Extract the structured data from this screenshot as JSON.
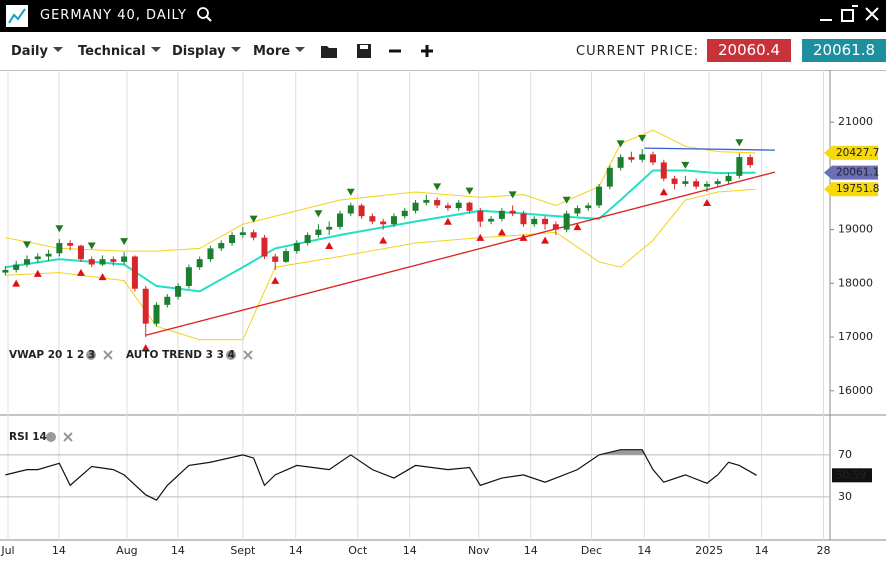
{
  "header": {
    "title": "GERMANY 40, DAILY"
  },
  "toolbar": {
    "menus": [
      "Daily",
      "Technical",
      "Display",
      "More"
    ],
    "price_label": "CURRENT PRICE:",
    "sell": "20060.4",
    "buy": "20061.8"
  },
  "chart_data": [
    {
      "type": "candlestick",
      "legend": [
        "VWAP 20 1 2 3",
        "AUTO TREND 3 3 4"
      ],
      "up_color": "#1b7f2f",
      "down_color": "#d8262b",
      "candles": [
        [
          18200,
          18320,
          18150,
          18250
        ],
        [
          18250,
          18420,
          18200,
          18350
        ],
        [
          18350,
          18520,
          18300,
          18450
        ],
        [
          18450,
          18560,
          18380,
          18500
        ],
        [
          18500,
          18620,
          18420,
          18550
        ],
        [
          18560,
          18820,
          18500,
          18750
        ],
        [
          18750,
          18800,
          18620,
          18700
        ],
        [
          18700,
          18720,
          18400,
          18450
        ],
        [
          18450,
          18500,
          18300,
          18350
        ],
        [
          18350,
          18520,
          18320,
          18450
        ],
        [
          18450,
          18500,
          18330,
          18400
        ],
        [
          18400,
          18580,
          18350,
          18500
        ],
        [
          18500,
          18520,
          17850,
          17900
        ],
        [
          17900,
          17950,
          17000,
          17250
        ],
        [
          17250,
          17650,
          17200,
          17600
        ],
        [
          17600,
          17800,
          17550,
          17750
        ],
        [
          17750,
          18000,
          17700,
          17950
        ],
        [
          17950,
          18350,
          17900,
          18300
        ],
        [
          18300,
          18500,
          18250,
          18450
        ],
        [
          18450,
          18700,
          18400,
          18650
        ],
        [
          18650,
          18800,
          18600,
          18750
        ],
        [
          18750,
          18950,
          18700,
          18900
        ],
        [
          18900,
          19050,
          18850,
          18950
        ],
        [
          18950,
          19000,
          18800,
          18850
        ],
        [
          18850,
          18900,
          18450,
          18500
        ],
        [
          18500,
          18550,
          18250,
          18400
        ],
        [
          18400,
          18650,
          18380,
          18600
        ],
        [
          18600,
          18800,
          18550,
          18750
        ],
        [
          18750,
          18950,
          18700,
          18900
        ],
        [
          18900,
          19100,
          18850,
          19000
        ],
        [
          19000,
          19150,
          18900,
          19050
        ],
        [
          19050,
          19350,
          19000,
          19300
        ],
        [
          19300,
          19500,
          19250,
          19450
        ],
        [
          19450,
          19480,
          19200,
          19250
        ],
        [
          19250,
          19300,
          19100,
          19150
        ],
        [
          19150,
          19200,
          19000,
          19100
        ],
        [
          19100,
          19300,
          19050,
          19250
        ],
        [
          19250,
          19400,
          19200,
          19350
        ],
        [
          19350,
          19550,
          19300,
          19500
        ],
        [
          19500,
          19650,
          19450,
          19550
        ],
        [
          19550,
          19600,
          19400,
          19450
        ],
        [
          19450,
          19500,
          19350,
          19400
        ],
        [
          19400,
          19550,
          19350,
          19500
        ],
        [
          19500,
          19520,
          19300,
          19350
        ],
        [
          19350,
          19400,
          19050,
          19150
        ],
        [
          19150,
          19250,
          19100,
          19200
        ],
        [
          19200,
          19400,
          19150,
          19350
        ],
        [
          19350,
          19450,
          19250,
          19300
        ],
        [
          19300,
          19350,
          19050,
          19100
        ],
        [
          19100,
          19250,
          19050,
          19200
        ],
        [
          19200,
          19250,
          19000,
          19100
        ],
        [
          19100,
          19150,
          18900,
          19000
        ],
        [
          19000,
          19350,
          18950,
          19300
        ],
        [
          19300,
          19450,
          19250,
          19400
        ],
        [
          19400,
          19500,
          19350,
          19450
        ],
        [
          19450,
          19850,
          19400,
          19800
        ],
        [
          19800,
          20200,
          19750,
          20150
        ],
        [
          20150,
          20400,
          20100,
          20350
        ],
        [
          20350,
          20450,
          20250,
          20300
        ],
        [
          20300,
          20500,
          20250,
          20400
        ],
        [
          20400,
          20450,
          20200,
          20250
        ],
        [
          20250,
          20300,
          19900,
          19950
        ],
        [
          19950,
          20000,
          19750,
          19850
        ],
        [
          19850,
          20000,
          19800,
          19900
        ],
        [
          19900,
          19950,
          19750,
          19800
        ],
        [
          19800,
          19900,
          19700,
          19850
        ],
        [
          19850,
          19950,
          19800,
          19900
        ],
        [
          19900,
          20050,
          19850,
          20000
        ],
        [
          20000,
          20420,
          19950,
          20350
        ],
        [
          20350,
          20400,
          20150,
          20200
        ]
      ],
      "ylim": [
        15550,
        21970
      ],
      "yticks": [
        16000,
        17000,
        18000,
        19000,
        20000,
        21000
      ],
      "bands": {
        "x": [
          0,
          5,
          11,
          14,
          18,
          22,
          25,
          31,
          38,
          44,
          48,
          51,
          55,
          57,
          60,
          63,
          66,
          69.5
        ],
        "series": [
          {
            "color": "#f2d21b",
            "tag_color": "#f5d90a",
            "values": [
              18850,
              18650,
              18600,
              18600,
              18650,
              19100,
              19250,
              19550,
              19700,
              19600,
              19650,
              19450,
              19800,
              20600,
              20850,
              20550,
              20450,
              20427.7
            ]
          },
          {
            "color": "#22e0c4",
            "tag_color": "#6a6fb8",
            "values": [
              18300,
              18450,
              18350,
              17950,
              17850,
              18300,
              18650,
              18900,
              19150,
              19350,
              19300,
              19250,
              19200,
              19550,
              20100,
              20100,
              20050,
              20061.1
            ]
          },
          {
            "color": "#f2d21b",
            "tag_color": "#f5d90a",
            "values": [
              18150,
              18200,
              18050,
              17200,
              16950,
              16950,
              18300,
              18500,
              18750,
              18850,
              18900,
              18950,
              18400,
              18300,
              18800,
              19550,
              19700,
              19751.8
            ]
          }
        ]
      },
      "trend_lines": [
        {
          "color": "#e02020",
          "x": [
            13,
            71.3
          ],
          "values": [
            17033,
            20070
          ]
        },
        {
          "color": "#3b5fd9",
          "x": [
            59.2,
            71.3
          ],
          "values": [
            20516,
            20479
          ]
        }
      ],
      "peak_markers": [
        2,
        5,
        8,
        11,
        23,
        29,
        32,
        40,
        43,
        47,
        52,
        57,
        59,
        63,
        68
      ],
      "peak_color": "#1f7a1f",
      "trough_markers": [
        1,
        3,
        7,
        9,
        13,
        25,
        30,
        35,
        41,
        44,
        46,
        48,
        50,
        53,
        61,
        65
      ],
      "trough_color": "#e01010"
    },
    {
      "type": "line",
      "title": "RSI 14",
      "color": "#111111",
      "fill": "#9a9a9a",
      "x": [
        0,
        2,
        3,
        5,
        6,
        8,
        10,
        11,
        13,
        14,
        15,
        17,
        19,
        22,
        23,
        24,
        25,
        27,
        30,
        32,
        34,
        36,
        38,
        41,
        43,
        44,
        46,
        48,
        50,
        51,
        53,
        55,
        57,
        59,
        60,
        61,
        63,
        65,
        66,
        67,
        68,
        69.6
      ],
      "values": [
        51,
        56,
        56,
        62,
        41,
        59,
        56,
        51,
        32,
        27,
        41,
        60,
        63,
        70,
        67,
        41,
        51,
        60,
        56,
        70,
        56,
        48,
        60,
        56,
        58,
        41,
        48,
        51,
        44,
        48,
        56,
        70,
        75,
        75,
        56,
        44,
        51,
        43,
        51,
        63,
        60,
        50.59
      ],
      "ylim": [
        -11,
        108
      ],
      "yticks": [
        70,
        30
      ],
      "xlim": [
        -0.5,
        76.4
      ],
      "xticks": [
        {
          "value": 0.24,
          "label": "Jul"
        },
        {
          "value": 4.96,
          "label": "14"
        },
        {
          "value": 11.26,
          "label": "Aug"
        },
        {
          "value": 15.98,
          "label": "14"
        },
        {
          "value": 22,
          "label": "Sept"
        },
        {
          "value": 26.9,
          "label": "14"
        },
        {
          "value": 32.65,
          "label": "Oct"
        },
        {
          "value": 37.46,
          "label": "14"
        },
        {
          "value": 43.85,
          "label": "Nov"
        },
        {
          "value": 48.67,
          "label": "14"
        },
        {
          "value": 54.3,
          "label": "Dec"
        },
        {
          "value": 59.2,
          "label": "14"
        },
        {
          "value": 65.2,
          "label": "2025"
        },
        {
          "value": 70.06,
          "label": "14"
        },
        {
          "value": 75.8,
          "label": "28"
        }
      ]
    }
  ]
}
